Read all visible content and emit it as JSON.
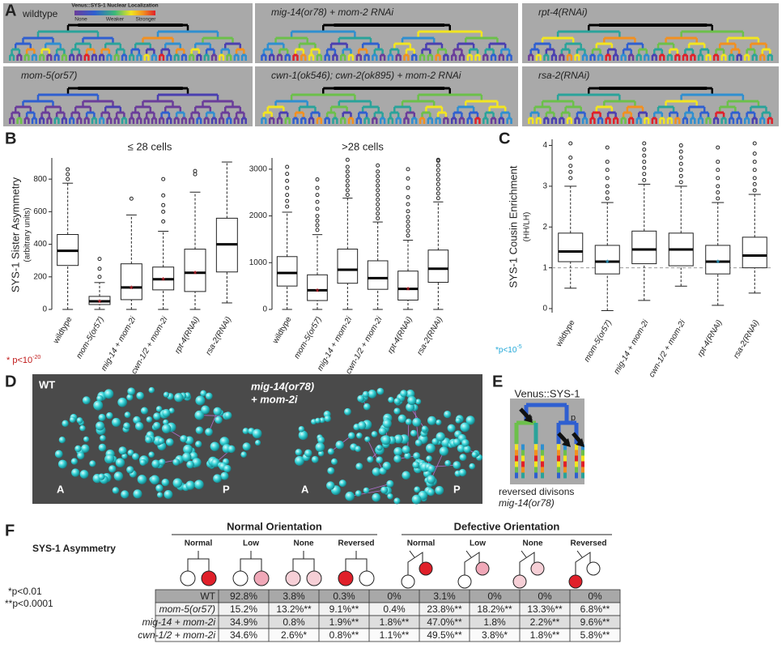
{
  "panels": {
    "A": {
      "label": "A",
      "legend": {
        "title": "Venus::SYS-1 Nuclear Localization",
        "ticks": [
          "None",
          "Weaker",
          "Stronger"
        ]
      },
      "trees": [
        {
          "label": "wildtype"
        },
        {
          "label": "mig-14(or78) + mom-2 RNAi"
        },
        {
          "label": "rpt-4(RNAi)"
        },
        {
          "label": "mom-5(or57)"
        },
        {
          "label": "cwn-1(ok546); cwn-2(ok895) + mom-2 RNAi"
        },
        {
          "label": "rsa-2(RNAi)"
        }
      ]
    },
    "B": {
      "label": "B",
      "y_title": "SYS-1 Sister Asymmetry",
      "y_subtitle": "(arbitrary units)",
      "footnote": {
        "symbol": "*",
        "text": " p<10",
        "exponent": "-20"
      },
      "charts": [
        {
          "type": "box",
          "title": "≤ 28 cells",
          "categories": [
            "wildtype",
            "mom-5(or57)",
            "mig-14 + mom-2i",
            "cwn-1/2 + mom-2i",
            "rpt-4(RNAi)",
            "rsa-2(RNAi)"
          ],
          "ylim": [
            0,
            930
          ],
          "yticks": [
            0,
            200,
            400,
            600,
            800
          ],
          "boxes": [
            {
              "q1": 270,
              "median": 360,
              "q3": 460,
              "whisker_low": 0,
              "whisker_high": 775,
              "outliers": [
                800,
                830,
                860
              ],
              "significant": false
            },
            {
              "q1": 30,
              "median": 50,
              "q3": 80,
              "whisker_low": 0,
              "whisker_high": 165,
              "outliers": [
                200,
                250,
                310
              ],
              "significant": true
            },
            {
              "q1": 60,
              "median": 135,
              "q3": 280,
              "whisker_low": 0,
              "whisker_high": 580,
              "outliers": [
                680
              ],
              "significant": true
            },
            {
              "q1": 120,
              "median": 185,
              "q3": 260,
              "whisker_low": 0,
              "whisker_high": 480,
              "outliers": [
                540,
                600,
                640,
                700,
                800
              ],
              "significant": true
            },
            {
              "q1": 110,
              "median": 225,
              "q3": 370,
              "whisker_low": 0,
              "whisker_high": 720,
              "outliers": [
                830,
                850
              ],
              "significant": true
            },
            {
              "q1": 230,
              "median": 400,
              "q3": 560,
              "whisker_low": 40,
              "whisker_high": 905,
              "outliers": [],
              "significant": false
            }
          ]
        },
        {
          "type": "box",
          "title": ">28 cells",
          "categories": [
            "wildtype",
            "mom-5(or57)",
            "mig-14 + mom-2i",
            "cwn-1/2 + mom-2i",
            "rpt-4(RNAi)",
            "rsa-2(RNAi)"
          ],
          "ylim": [
            0,
            3240
          ],
          "yticks": [
            0,
            1000,
            2000,
            3000
          ],
          "boxes": [
            {
              "q1": 500,
              "median": 780,
              "q3": 1130,
              "whisker_low": 0,
              "whisker_high": 2080,
              "outliers": [
                2200,
                2320,
                2450,
                2600,
                2750,
                2900,
                3050
              ],
              "significant": false
            },
            {
              "q1": 190,
              "median": 410,
              "q3": 740,
              "whisker_low": 0,
              "whisker_high": 1600,
              "outliers": [
                1700,
                1800,
                1900,
                2000,
                2150,
                2300,
                2450,
                2600,
                2780
              ],
              "significant": true
            },
            {
              "q1": 560,
              "median": 850,
              "q3": 1290,
              "whisker_low": 0,
              "whisker_high": 2380,
              "outliers": [
                2450,
                2550,
                2650,
                2750,
                2850,
                2950,
                3050,
                3200
              ],
              "significant": false
            },
            {
              "q1": 430,
              "median": 670,
              "q3": 1040,
              "whisker_low": 0,
              "whisker_high": 1870,
              "outliers": [
                1950,
                2050,
                2150,
                2250,
                2350,
                2450,
                2550,
                2650,
                2750,
                2850,
                2950,
                3080
              ],
              "significant": false
            },
            {
              "q1": 200,
              "median": 440,
              "q3": 820,
              "whisker_low": 0,
              "whisker_high": 1480,
              "outliers": [
                1580,
                1680,
                1780,
                1880,
                1980,
                2100,
                2250,
                2400,
                2600,
                2800,
                3000
              ],
              "significant": true
            },
            {
              "q1": 580,
              "median": 870,
              "q3": 1270,
              "whisker_low": 0,
              "whisker_high": 2300,
              "outliers": [
                2380,
                2480,
                2580,
                2680,
                2780,
                2880,
                2980,
                3080,
                3180,
                3200
              ],
              "significant": false
            }
          ]
        }
      ]
    },
    "C": {
      "label": "C",
      "y_title": "SYS-1 Cousin Enrichment",
      "y_subtitle": "(HH/LH)",
      "footnote": {
        "symbol": "*",
        "text": "p<10",
        "exponent": "-5"
      },
      "chart": {
        "type": "box",
        "categories": [
          "wildtype",
          "mom-5(or57)",
          "mig-14 + mom-2i",
          "cwn-1/2 + mom-2i",
          "rpt-4(RNAi)",
          "rsa-2(RNAi)"
        ],
        "ylim": [
          -0.1,
          4.15
        ],
        "yticks": [
          0,
          1,
          2,
          3,
          4
        ],
        "reference_line": 1,
        "boxes": [
          {
            "q1": 1.15,
            "median": 1.4,
            "q3": 1.85,
            "whisker_low": 0.5,
            "whisker_high": 3.0,
            "outliers": [
              3.2,
              3.35,
              3.5,
              3.7,
              4.05
            ],
            "significant": false
          },
          {
            "q1": 0.85,
            "median": 1.15,
            "q3": 1.55,
            "whisker_low": -0.05,
            "whisker_high": 2.6,
            "outliers": [
              2.7,
              2.85,
              3.0,
              3.2,
              3.4,
              3.6,
              3.95
            ],
            "significant": true
          },
          {
            "q1": 1.1,
            "median": 1.45,
            "q3": 1.9,
            "whisker_low": 0.2,
            "whisker_high": 3.05,
            "outliers": [
              3.15,
              3.3,
              3.45,
              3.6,
              3.75,
              3.9,
              4.05
            ],
            "significant": false
          },
          {
            "q1": 1.05,
            "median": 1.45,
            "q3": 1.85,
            "whisker_low": 0.55,
            "whisker_high": 3.0,
            "outliers": [
              3.1,
              3.25,
              3.4,
              3.55,
              3.7,
              3.85,
              4.0
            ],
            "significant": false
          },
          {
            "q1": 0.85,
            "median": 1.15,
            "q3": 1.55,
            "whisker_low": 0.08,
            "whisker_high": 2.6,
            "outliers": [
              2.7,
              2.85,
              3.0,
              3.2,
              3.4,
              3.6,
              3.95
            ],
            "significant": true
          },
          {
            "q1": 1.0,
            "median": 1.3,
            "q3": 1.75,
            "whisker_low": 0.38,
            "whisker_high": 2.8,
            "outliers": [
              2.9,
              3.05,
              3.2,
              3.4,
              3.6,
              3.8,
              4.05
            ],
            "significant": false
          }
        ]
      }
    },
    "D": {
      "label": "D",
      "left_title": "WT",
      "right_title": [
        "mig-14(or78)",
        "+ mom-2i"
      ],
      "anterior": "A",
      "posterior": "P"
    },
    "E": {
      "label": "E",
      "title": "Venus::SYS-1",
      "anterior": "a",
      "posterior": "p",
      "caption": [
        "reversed divisons",
        "mig-14(or78)"
      ]
    },
    "F": {
      "label": "F",
      "title": "SYS-1 Asymmetry",
      "footnotes": [
        "*p<0.01",
        "**p<0.0001"
      ],
      "groups": [
        {
          "label": "Normal Orientation",
          "columns": [
            "Normal",
            "Low",
            "None",
            "Reversed"
          ]
        },
        {
          "label": "Defective Orientation",
          "columns": [
            "Normal",
            "Low",
            "None",
            "Reversed"
          ]
        }
      ],
      "rows": [
        [
          "WT",
          "92.8%",
          "3.8%",
          "0.3%",
          "0%",
          "3.1%",
          "0%",
          "0%",
          "0%"
        ],
        [
          "mom-5(or57)",
          "15.2%",
          "13.2%**",
          "9.1%**",
          "0.4%",
          "23.8%**",
          "18.2%**",
          "13.3%**",
          "6.8%**"
        ],
        [
          "mig-14 + mom-2i",
          "34.9%",
          "0.8%",
          "1.9%**",
          "1.8%**",
          "47.0%**",
          "1.8%",
          "2.2%**",
          "9.6%**"
        ],
        [
          "cwn-1/2 + mom-2i",
          "34.6%",
          "2.6%*",
          "0.8%**",
          "1.1%**",
          "49.5%**",
          "3.8%*",
          "1.8%**",
          "5.8%**"
        ]
      ]
    }
  }
}
